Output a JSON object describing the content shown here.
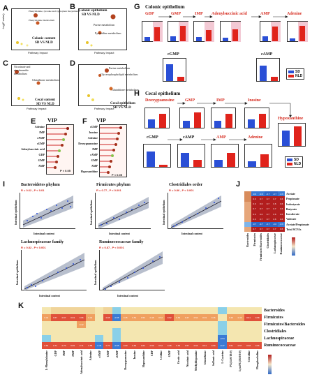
{
  "panels": {
    "A": {
      "letter": "A",
      "labels": [
        "Phenylalanine, tyrosine and tryptophan biosynthesis",
        "Phenylalanine metabolism",
        "Colonic content",
        "SD VS NLD"
      ],
      "xlabel": "Pathway Impact",
      "ylabel": "-log(P value)"
    },
    "B": {
      "letter": "B",
      "labels": [
        "Colonic epithelium",
        "SD VS NLD",
        "Purine metabolism",
        "Pyrimidine metabolism"
      ],
      "xlabel": "Pathway Impact",
      "ylabel": "-log(P value)"
    },
    "C": {
      "letter": "C",
      "labels": [
        "Nicotinate and nicotinamide metabolism",
        "Glutathione metabolism",
        "Cecal content",
        "SD VS NLD"
      ],
      "xlabel": "Pathway Impact",
      "ylabel": "-log(P value)"
    },
    "D": {
      "letter": "D",
      "labels": [
        "Purine metabolism",
        "Glycerophospholipid metabolism",
        "Glutathione metabolism",
        "Cecal epithelium",
        "SD VS NLD"
      ],
      "xlabel": "Pathway Impact",
      "ylabel": "-log(P value)"
    },
    "E": {
      "letter": "E",
      "title": "VIP",
      "rows": [
        "Adenine",
        "IMP",
        "cAMP",
        "cGMP",
        "Adenylsuccinic acid",
        "GDP",
        "GMP",
        "AMP"
      ],
      "note": "P < 0.05"
    },
    "F": {
      "letter": "F",
      "title": "VIP",
      "rows": [
        "cGMP",
        "Inosine",
        "Adenine",
        "Deoxyguanosine",
        "IMP",
        "cAMP",
        "GMP",
        "AMP",
        "Hypoxanthine"
      ],
      "note": "P < 0.05"
    },
    "G": {
      "letter": "G",
      "title": "Colonic epithelium",
      "row1": [
        "GDP",
        "GMP",
        "IMP",
        "Adenylsuccinic acid",
        "AMP",
        "Adenine"
      ],
      "row2": [
        "cGMP",
        "cAMP"
      ]
    },
    "H": {
      "letter": "H",
      "title": "Cecal epithelium",
      "row1": [
        "Deoxyguanosine",
        "GMP",
        "IMP",
        "Inosine"
      ],
      "side": "Hypoxanthine",
      "row2": [
        "cGMP",
        "cAMP",
        "AMP",
        "Adenine"
      ]
    },
    "I": {
      "letter": "I",
      "plots": [
        {
          "title": "Bacteroidetes phylum",
          "stat": "R = 0.62 , P < 0.01"
        },
        {
          "title": "Firmicutes phylum",
          "stat": "R = 0.77 , P < 0.001"
        },
        {
          "title": "Clostridiales order",
          "stat": "R = 0.86 , P < 0.001"
        },
        {
          "title": "Lachnospiraceae family",
          "stat": "R = 0.82 , P < 0.001"
        },
        {
          "title": "Ruminococcaceae family",
          "stat": "R = 0.87 , P < 0.001"
        }
      ],
      "xlabel": "Intestinal content",
      "ylabel": "Intestinal epithelium"
    },
    "J": {
      "letter": "J",
      "rows": [
        "Acetate",
        "Propionate",
        "Isobutyrate",
        "Butyrate",
        "Isovalerate",
        "Valerate",
        "Acetate/Propionate",
        "Total SCFAs"
      ],
      "cols": [
        "Bacteroides",
        "Firmicutes",
        "Firmicutes/Bacteroides",
        "Clostridiales",
        "Lachnospiraceae",
        "Ruminococcaceae"
      ]
    },
    "K": {
      "letter": "K",
      "rows": [
        "Bacteroides",
        "Firmicutes",
        "Firmicutes/Bacteroides",
        "Clostridiales",
        "Lachnospiraceae",
        "Ruminococcaceae"
      ],
      "cols": [
        "L-Phenylalanine",
        "GDP",
        "IMP",
        "AMP",
        "Adenylsuccinic acid",
        "Adenine",
        "cAMP",
        "GMP",
        "cGMP",
        "Deoxyguanosine",
        "Inosine",
        "Hypoxanthine",
        "CDP",
        "Uridine",
        "GMP",
        "Orotic acid",
        "Nicotinic acid",
        "Methyldopamine",
        "Glutathione",
        "Sulfonic acid",
        "L-Cysteine",
        "PC(14:0/18:0)",
        "LysoPC(16:0/0:0)",
        "Citicoline",
        "Phosphocholine"
      ]
    }
  },
  "legend": {
    "sd": "SD",
    "nld": "NLD",
    "sd_color": "#2a4fd6",
    "nld_color": "#e0231b"
  }
}
